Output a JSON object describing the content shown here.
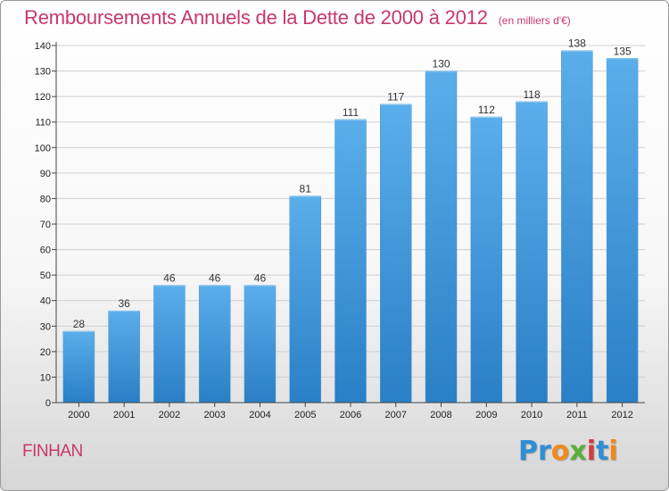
{
  "title": "Remboursements Annuels de la Dette de 2000 à 2012",
  "subtitle": "(en milliers d'€)",
  "commune": "FINHAN",
  "logo": {
    "text": "Proxiti",
    "letters": [
      {
        "ch": "P",
        "color": "#2f8fd4"
      },
      {
        "ch": "r",
        "color": "#2f8fd4"
      },
      {
        "ch": "o",
        "color": "#f08a1c"
      },
      {
        "ch": "x",
        "color": "#5cae3a"
      },
      {
        "ch": "i",
        "color": "#d23c3c"
      },
      {
        "ch": "t",
        "color": "#2f8fd4"
      },
      {
        "ch": "i",
        "color": "#f08a1c"
      }
    ]
  },
  "colors": {
    "title": "#c8386a",
    "bar_top": "#5aaeea",
    "bar_bottom": "#2a7fc6",
    "grid": "#cfcfcf"
  },
  "chart_data": {
    "type": "bar",
    "title": "Remboursements Annuels de la Dette de 2000 à 2012",
    "subtitle": "(en milliers d'€)",
    "categories": [
      "2000",
      "2001",
      "2002",
      "2003",
      "2004",
      "2005",
      "2006",
      "2007",
      "2008",
      "2009",
      "2010",
      "2011",
      "2012"
    ],
    "values": [
      28,
      36,
      46,
      46,
      46,
      81,
      111,
      117,
      130,
      112,
      118,
      138,
      135
    ],
    "ylim": [
      0,
      140
    ],
    "yticks": [
      0,
      10,
      20,
      30,
      40,
      50,
      60,
      70,
      80,
      90,
      100,
      110,
      120,
      130,
      140
    ],
    "grid": true,
    "xlabel": "",
    "ylabel": ""
  }
}
